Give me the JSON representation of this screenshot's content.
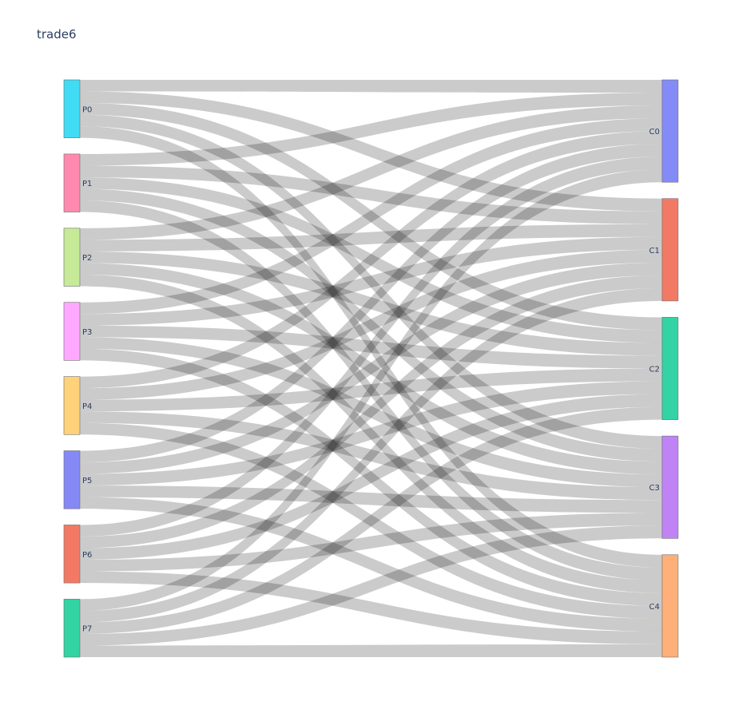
{
  "chart_data": {
    "type": "sankey",
    "title": "trade6",
    "sources": [
      {
        "label": "P0",
        "color": "#3FDCF4"
      },
      {
        "label": "P1",
        "color": "#FF8AAE"
      },
      {
        "label": "P2",
        "color": "#C6EA98"
      },
      {
        "label": "P3",
        "color": "#FEA9FF"
      },
      {
        "label": "P4",
        "color": "#FED27A"
      },
      {
        "label": "P5",
        "color": "#8589F6"
      },
      {
        "label": "P6",
        "color": "#F27A65"
      },
      {
        "label": "P7",
        "color": "#32D4A4"
      }
    ],
    "targets": [
      {
        "label": "C0",
        "color": "#858BF6"
      },
      {
        "label": "C1",
        "color": "#F27A65"
      },
      {
        "label": "C2",
        "color": "#33D3A5"
      },
      {
        "label": "C3",
        "color": "#BF83F6"
      },
      {
        "label": "C4",
        "color": "#FFB07A"
      }
    ],
    "links": [
      {
        "source": "P0",
        "target": "C0",
        "value": 1
      },
      {
        "source": "P0",
        "target": "C1",
        "value": 1
      },
      {
        "source": "P0",
        "target": "C2",
        "value": 1
      },
      {
        "source": "P0",
        "target": "C3",
        "value": 1
      },
      {
        "source": "P0",
        "target": "C4",
        "value": 1
      },
      {
        "source": "P1",
        "target": "C0",
        "value": 1
      },
      {
        "source": "P1",
        "target": "C1",
        "value": 1
      },
      {
        "source": "P1",
        "target": "C2",
        "value": 1
      },
      {
        "source": "P1",
        "target": "C3",
        "value": 1
      },
      {
        "source": "P1",
        "target": "C4",
        "value": 1
      },
      {
        "source": "P2",
        "target": "C0",
        "value": 1
      },
      {
        "source": "P2",
        "target": "C1",
        "value": 1
      },
      {
        "source": "P2",
        "target": "C2",
        "value": 1
      },
      {
        "source": "P2",
        "target": "C3",
        "value": 1
      },
      {
        "source": "P2",
        "target": "C4",
        "value": 1
      },
      {
        "source": "P3",
        "target": "C0",
        "value": 1
      },
      {
        "source": "P3",
        "target": "C1",
        "value": 1
      },
      {
        "source": "P3",
        "target": "C2",
        "value": 1
      },
      {
        "source": "P3",
        "target": "C3",
        "value": 1
      },
      {
        "source": "P3",
        "target": "C4",
        "value": 1
      },
      {
        "source": "P4",
        "target": "C0",
        "value": 1
      },
      {
        "source": "P4",
        "target": "C1",
        "value": 1
      },
      {
        "source": "P4",
        "target": "C2",
        "value": 1
      },
      {
        "source": "P4",
        "target": "C3",
        "value": 1
      },
      {
        "source": "P4",
        "target": "C4",
        "value": 1
      },
      {
        "source": "P5",
        "target": "C0",
        "value": 1
      },
      {
        "source": "P5",
        "target": "C1",
        "value": 1
      },
      {
        "source": "P5",
        "target": "C2",
        "value": 1
      },
      {
        "source": "P5",
        "target": "C3",
        "value": 1
      },
      {
        "source": "P5",
        "target": "C4",
        "value": 1
      },
      {
        "source": "P6",
        "target": "C0",
        "value": 1
      },
      {
        "source": "P6",
        "target": "C1",
        "value": 1
      },
      {
        "source": "P6",
        "target": "C2",
        "value": 1
      },
      {
        "source": "P6",
        "target": "C3",
        "value": 1
      },
      {
        "source": "P6",
        "target": "C4",
        "value": 1
      },
      {
        "source": "P7",
        "target": "C0",
        "value": 1
      },
      {
        "source": "P7",
        "target": "C1",
        "value": 1
      },
      {
        "source": "P7",
        "target": "C2",
        "value": 1
      },
      {
        "source": "P7",
        "target": "C3",
        "value": 1
      },
      {
        "source": "P7",
        "target": "C4",
        "value": 1
      }
    ],
    "link_color": "#c8c8c8"
  }
}
